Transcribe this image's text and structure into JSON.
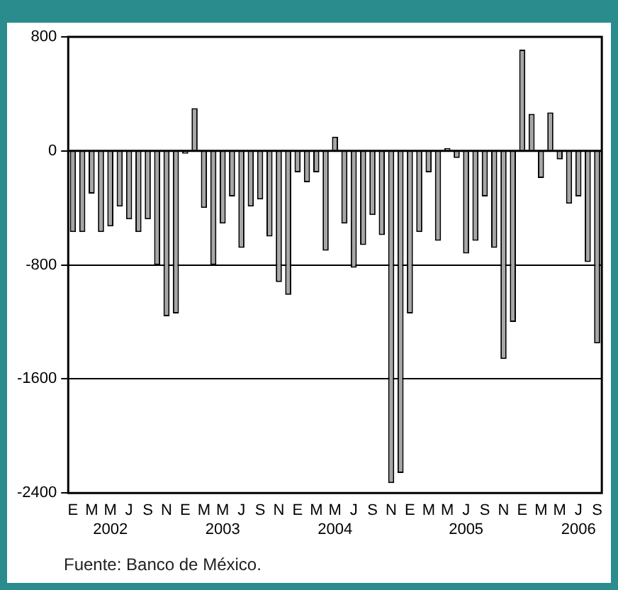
{
  "chart_data": {
    "type": "bar",
    "categories": [
      "E",
      null,
      "M",
      null,
      "M\n2002",
      null,
      "J",
      null,
      "S",
      null,
      "N",
      null,
      "E",
      null,
      "M",
      null,
      "M\n2003",
      null,
      "J",
      null,
      "S",
      null,
      "N",
      null,
      "E",
      null,
      "M",
      null,
      "M\n2004",
      null,
      "J",
      null,
      "S",
      null,
      "N",
      null,
      "E",
      null,
      "M",
      null,
      "M",
      null,
      "J\n2005",
      null,
      "S",
      null,
      "N",
      null,
      "E",
      null,
      "M",
      null,
      "M",
      null,
      "J\n2006",
      null,
      "S"
    ],
    "values": [
      -570,
      -570,
      -300,
      -570,
      -530,
      -390,
      -480,
      -570,
      -480,
      -800,
      -1160,
      -1140,
      -20,
      300,
      -400,
      -800,
      -510,
      -320,
      -680,
      -390,
      -340,
      -600,
      -920,
      -1010,
      -150,
      -220,
      -150,
      -700,
      100,
      -510,
      -820,
      -660,
      -450,
      -590,
      -2330,
      -2260,
      -1140,
      -570,
      -150,
      -630,
      20,
      -50,
      -720,
      -630,
      -320,
      -680,
      -1460,
      -1200,
      710,
      260,
      -190,
      270,
      -60,
      -370,
      -320,
      -780,
      -1350
    ],
    "color": "#a6a6a6",
    "ylim": [
      -2400,
      800
    ],
    "yticks": [
      -2400,
      -1600,
      -800,
      0,
      800
    ],
    "grid": "y",
    "annotations": [
      "Fuente: Banco de México."
    ]
  }
}
